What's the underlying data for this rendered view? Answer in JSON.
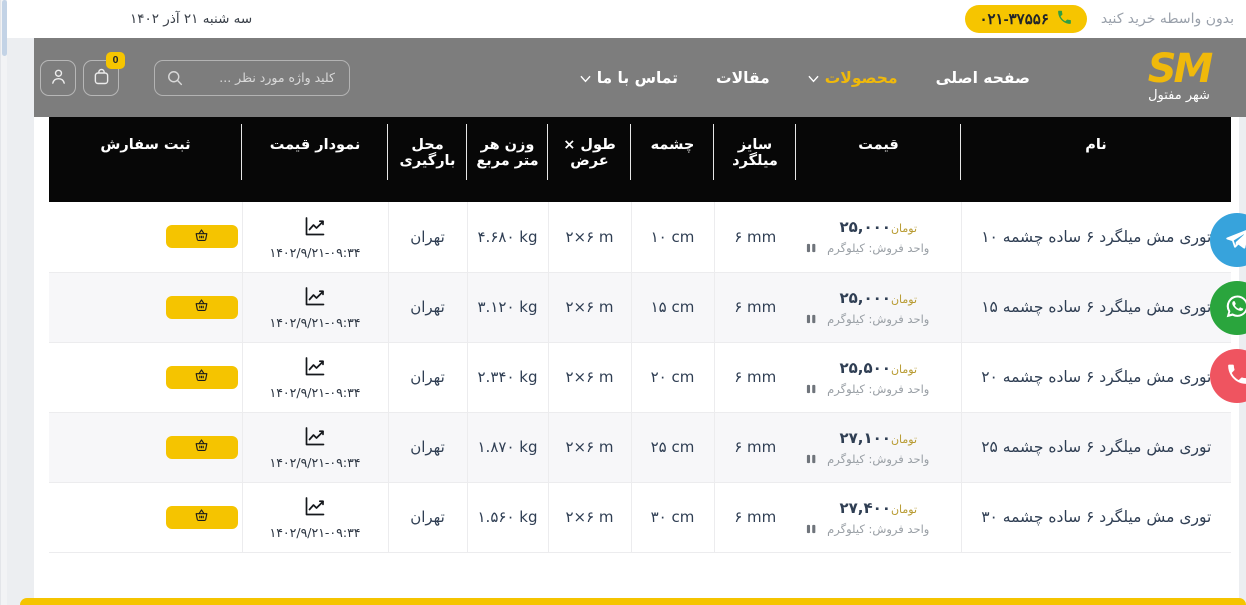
{
  "topbar": {
    "date": "سه شنبه ۲۱ آذر ۱۴۰۲",
    "cta_text": "بدون واسطه خرید کنید",
    "phone": "۰۲۱-۳۷۵۵۶"
  },
  "header": {
    "logo_text": "SM",
    "logo_subtext": "شهر مفتول",
    "nav": [
      {
        "label": "صفحه اصلی"
      },
      {
        "label": "محصولات"
      },
      {
        "label": "مقالات"
      },
      {
        "label": "تماس با ما"
      }
    ],
    "search_placeholder": "کلید واژه مورد نظر ...",
    "cart_badge": "0"
  },
  "table": {
    "headers": [
      "نام",
      "قیمت",
      "سایز میلگرد",
      "چشمه",
      "طول × عرض",
      "وزن هر متر مربع",
      "محل بارگیری",
      "نمودار قیمت",
      "ثبت سفارش"
    ],
    "currency_label": "تومان",
    "unit_label": "واحد فروش: کیلوگرم",
    "rows": [
      {
        "name": "توری مش میلگرد ۶ ساده چشمه ۱۰",
        "price": "۲۵,۰۰۰",
        "size": "۶ mm",
        "eye": "۱۰ cm",
        "dims": "۲×۶ m",
        "weight": "۴.۶۸۰ kg",
        "loading": "تهران",
        "chart_date": "۱۴۰۲/۹/۲۱-۰۹:۳۴"
      },
      {
        "name": "توری مش میلگرد ۶ ساده چشمه ۱۵",
        "price": "۲۵,۰۰۰",
        "size": "۶ mm",
        "eye": "۱۵ cm",
        "dims": "۲×۶ m",
        "weight": "۳.۱۲۰ kg",
        "loading": "تهران",
        "chart_date": "۱۴۰۲/۹/۲۱-۰۹:۳۴"
      },
      {
        "name": "توری مش میلگرد ۶ ساده چشمه ۲۰",
        "price": "۲۵,۵۰۰",
        "size": "۶ mm",
        "eye": "۲۰ cm",
        "dims": "۲×۶ m",
        "weight": "۲.۳۴۰ kg",
        "loading": "تهران",
        "chart_date": "۱۴۰۲/۹/۲۱-۰۹:۳۴"
      },
      {
        "name": "توری مش میلگرد ۶ ساده چشمه ۲۵",
        "price": "۲۷,۱۰۰",
        "size": "۶ mm",
        "eye": "۲۵ cm",
        "dims": "۲×۶ m",
        "weight": "۱.۸۷۰ kg",
        "loading": "تهران",
        "chart_date": "۱۴۰۲/۹/۲۱-۰۹:۳۴"
      },
      {
        "name": "توری مش میلگرد ۶ ساده چشمه ۳۰",
        "price": "۲۷,۴۰۰",
        "size": "۶ mm",
        "eye": "۳۰ cm",
        "dims": "۲×۶ m",
        "weight": "۱.۵۶۰ kg",
        "loading": "تهران",
        "chart_date": "۱۴۰۲/۹/۲۱-۰۹:۳۴"
      }
    ]
  },
  "floating_buttons": [
    {
      "icon": "telegram-icon"
    },
    {
      "icon": "whatsapp-icon"
    },
    {
      "icon": "phone-icon"
    }
  ],
  "colors": {
    "accent_yellow": "#f5c400",
    "logo_yellow": "#f0b90b",
    "header_gray": "#7d7d7d",
    "table_header_black": "#070707",
    "currency_gold": "#b89b32",
    "telegram_blue": "#37a3dc",
    "whatsapp_green": "#2aa53d",
    "phone_red": "#ef5460"
  }
}
